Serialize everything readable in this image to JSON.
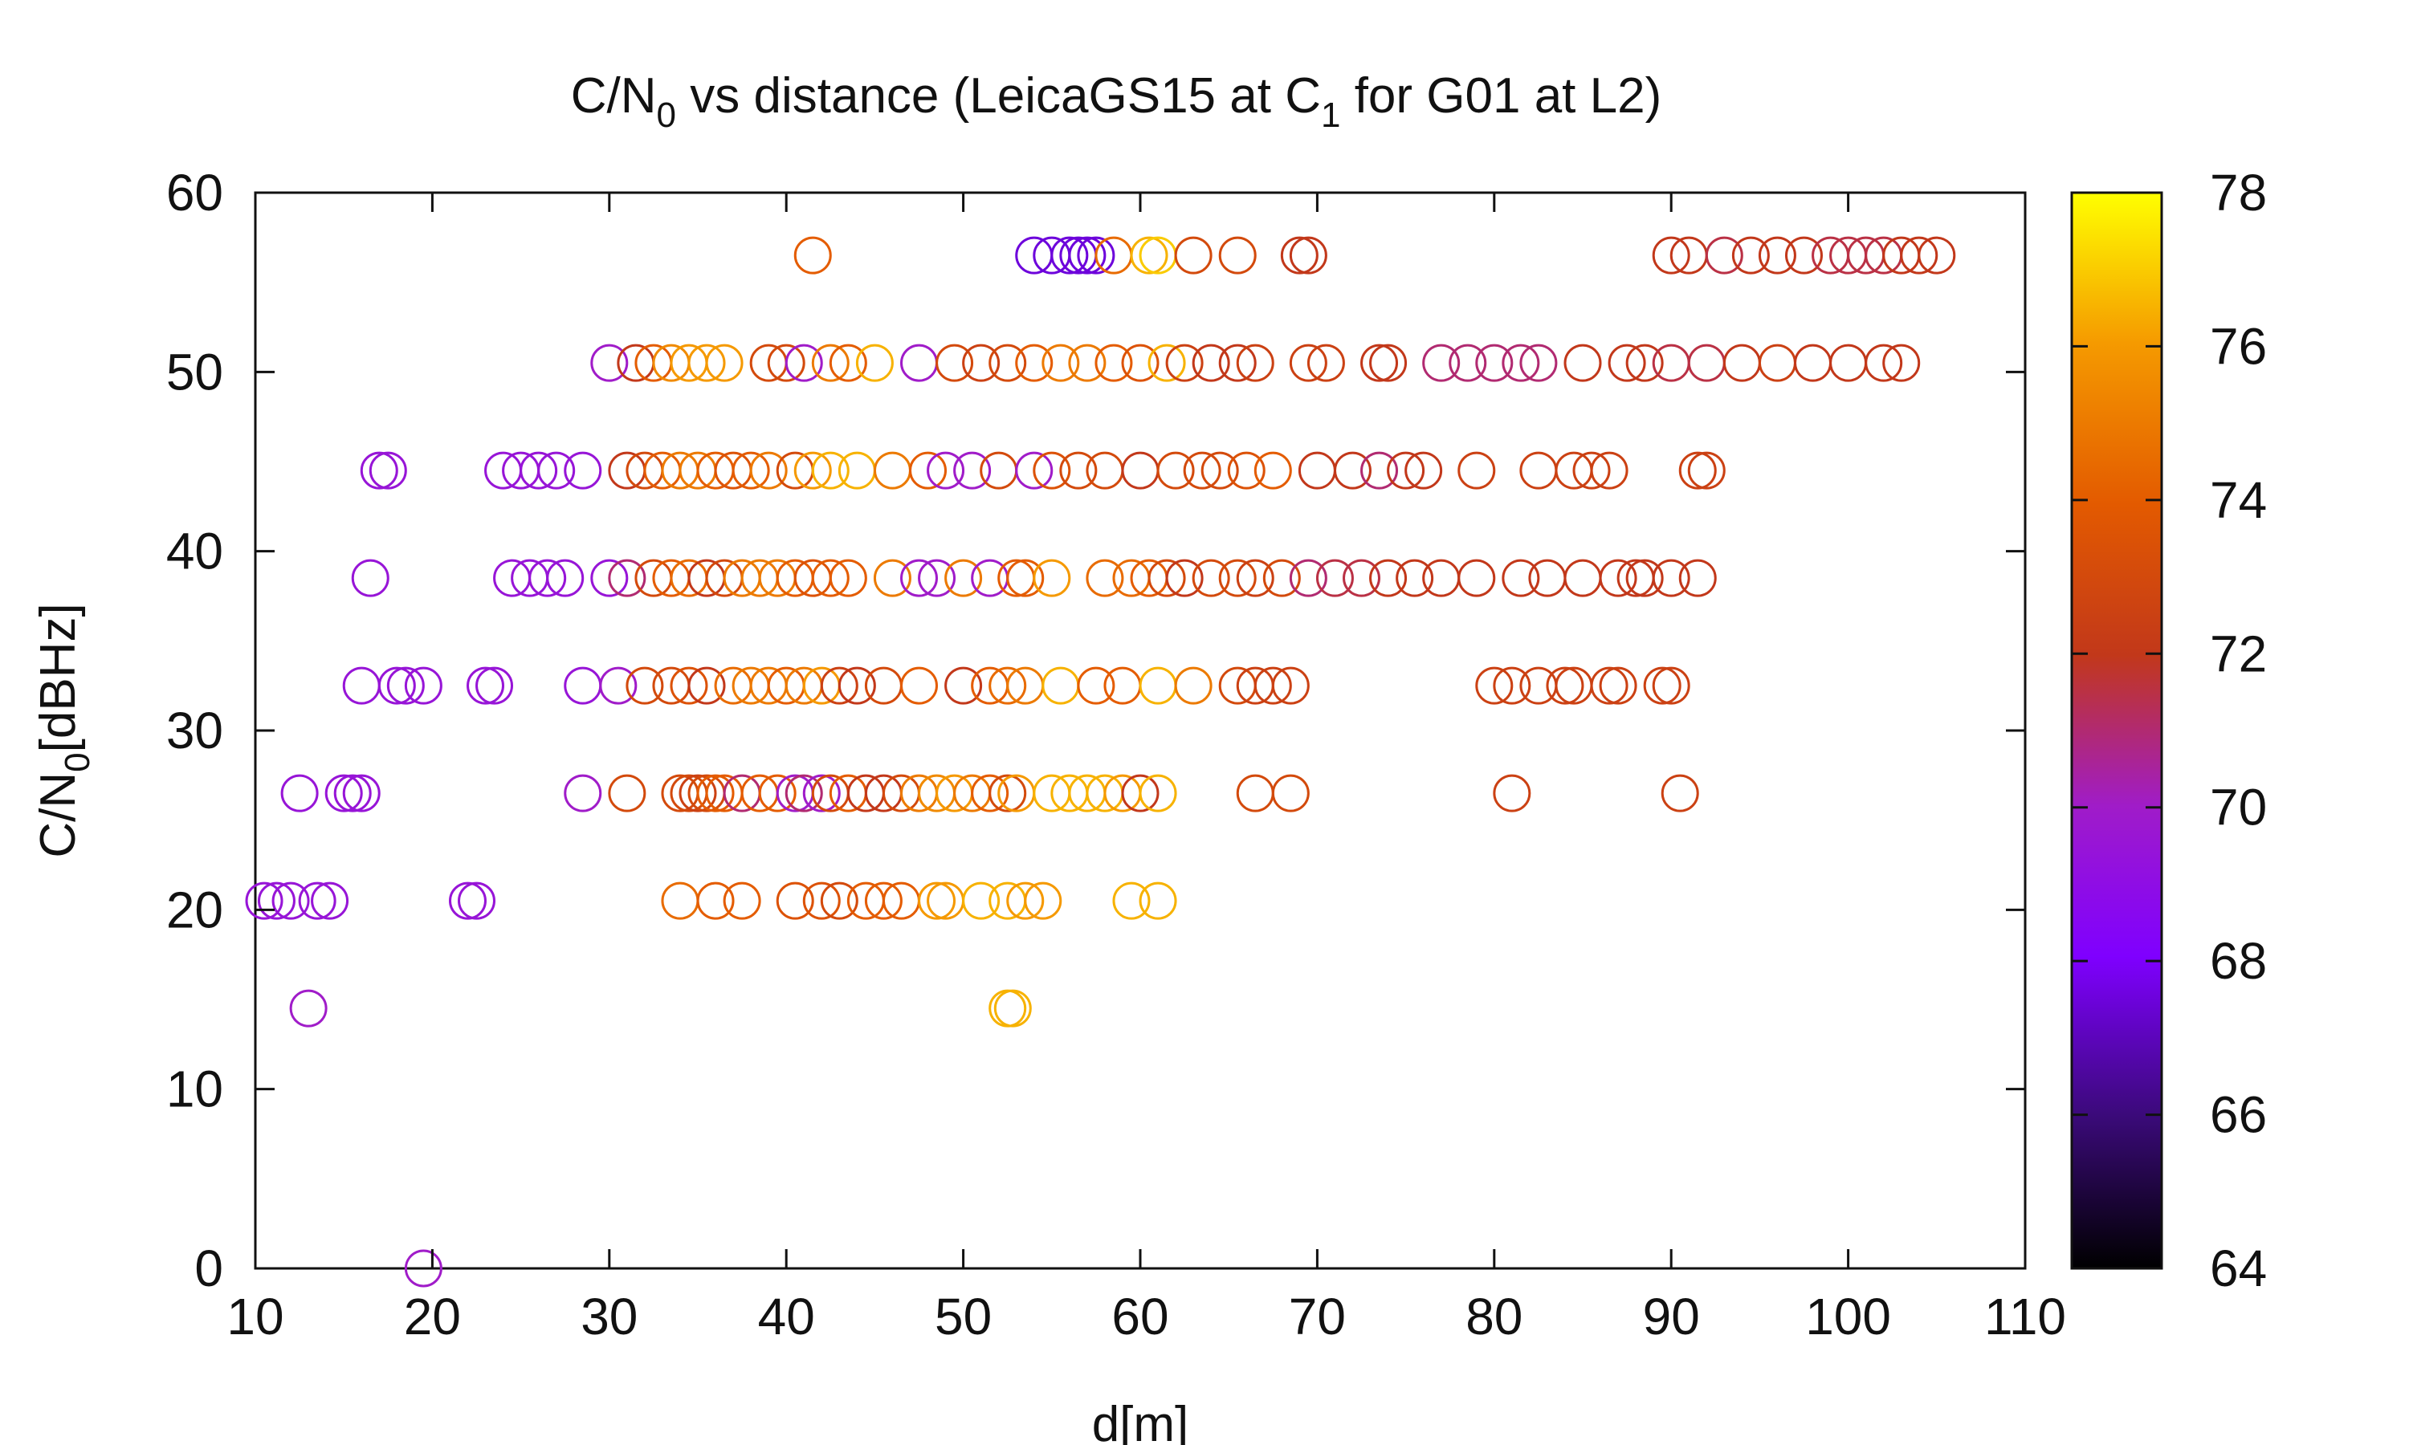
{
  "chart_data": {
    "type": "scatter",
    "title": "C/N",
    "title_sub": "0",
    "title_mid": " vs distance (LeicaGS15 at C",
    "title_sub2": "1",
    "title_end": " for G01 at L2)",
    "xlabel": "d[m]",
    "ylabel": "C/N",
    "ylabel_sub": "0",
    "ylabel_end": "[dBHz]",
    "xlim": [
      10,
      110
    ],
    "ylim": [
      0,
      60
    ],
    "xticks": [
      10,
      20,
      30,
      40,
      50,
      60,
      70,
      80,
      90,
      100,
      110
    ],
    "yticks": [
      0,
      10,
      20,
      30,
      40,
      50,
      60
    ],
    "grid": false,
    "legend": "none",
    "colorbar": {
      "range": [
        64,
        78
      ],
      "ticks": [
        64,
        66,
        68,
        70,
        72,
        74,
        76,
        78
      ],
      "colormap": "gnuplot",
      "position": "right"
    },
    "marker": "open-circle",
    "points": [
      [
        19.5,
        0,
        70
      ],
      [
        13,
        14.5,
        70
      ],
      [
        52.5,
        14.5,
        76.5
      ],
      [
        52.8,
        14.5,
        76.5
      ],
      [
        10.5,
        20.5,
        69.5
      ],
      [
        11.2,
        20.5,
        69.5
      ],
      [
        12,
        20.5,
        69.5
      ],
      [
        13.5,
        20.5,
        69.5
      ],
      [
        14.2,
        20.5,
        69.5
      ],
      [
        22,
        20.5,
        69.5
      ],
      [
        22.5,
        20.5,
        69.5
      ],
      [
        34,
        20.5,
        74.5
      ],
      [
        36,
        20.5,
        74
      ],
      [
        37.5,
        20.5,
        74
      ],
      [
        40.5,
        20.5,
        73.5
      ],
      [
        42,
        20.5,
        73.5
      ],
      [
        43,
        20.5,
        73
      ],
      [
        44.5,
        20.5,
        74
      ],
      [
        45.5,
        20.5,
        74
      ],
      [
        46.5,
        20.5,
        74
      ],
      [
        48.5,
        20.5,
        76
      ],
      [
        49,
        20.5,
        76
      ],
      [
        51,
        20.5,
        76.5
      ],
      [
        52.5,
        20.5,
        76.5
      ],
      [
        53.5,
        20.5,
        76
      ],
      [
        54.5,
        20.5,
        76
      ],
      [
        59.5,
        20.5,
        76.5
      ],
      [
        61,
        20.5,
        76.5
      ],
      [
        12.5,
        26.5,
        69.5
      ],
      [
        15,
        26.5,
        69.5
      ],
      [
        15.5,
        26.5,
        69.5
      ],
      [
        16,
        26.5,
        69.5
      ],
      [
        28.5,
        26.5,
        70
      ],
      [
        31,
        26.5,
        73
      ],
      [
        34,
        26.5,
        73
      ],
      [
        34.5,
        26.5,
        73
      ],
      [
        35,
        26.5,
        72.5
      ],
      [
        35.5,
        26.5,
        73
      ],
      [
        36,
        26.5,
        74
      ],
      [
        36.5,
        26.5,
        74
      ],
      [
        37.5,
        26.5,
        71
      ],
      [
        38.5,
        26.5,
        74
      ],
      [
        39.5,
        26.5,
        74
      ],
      [
        40.5,
        26.5,
        70
      ],
      [
        41,
        26.5,
        71
      ],
      [
        42,
        26.5,
        70
      ],
      [
        42.5,
        26.5,
        73
      ],
      [
        43.5,
        26.5,
        74
      ],
      [
        44.5,
        26.5,
        72
      ],
      [
        45.5,
        26.5,
        72
      ],
      [
        46.5,
        26.5,
        73
      ],
      [
        47.5,
        26.5,
        75
      ],
      [
        48.5,
        26.5,
        75.5
      ],
      [
        49.5,
        26.5,
        76
      ],
      [
        50.5,
        26.5,
        75
      ],
      [
        51.5,
        26.5,
        74
      ],
      [
        52.5,
        26.5,
        73
      ],
      [
        53,
        26.5,
        76
      ],
      [
        55,
        26.5,
        76.5
      ],
      [
        56,
        26.5,
        76.5
      ],
      [
        57,
        26.5,
        76.5
      ],
      [
        58,
        26.5,
        76.5
      ],
      [
        59,
        26.5,
        76
      ],
      [
        60,
        26.5,
        72
      ],
      [
        61,
        26.5,
        76.5
      ],
      [
        66.5,
        26.5,
        73
      ],
      [
        68.5,
        26.5,
        73
      ],
      [
        81,
        26.5,
        72.5
      ],
      [
        90.5,
        26.5,
        72.5
      ],
      [
        16,
        32.5,
        69.5
      ],
      [
        18,
        32.5,
        69.5
      ],
      [
        18.5,
        32.5,
        69.5
      ],
      [
        19.5,
        32.5,
        69.5
      ],
      [
        23,
        32.5,
        69.5
      ],
      [
        23.5,
        32.5,
        69.5
      ],
      [
        28.5,
        32.5,
        69.5
      ],
      [
        30.5,
        32.5,
        70
      ],
      [
        32,
        32.5,
        73
      ],
      [
        33.5,
        32.5,
        73
      ],
      [
        34.5,
        32.5,
        73.5
      ],
      [
        35.5,
        32.5,
        72
      ],
      [
        37,
        32.5,
        74.5
      ],
      [
        38,
        32.5,
        75
      ],
      [
        39,
        32.5,
        75
      ],
      [
        40,
        32.5,
        74
      ],
      [
        41,
        32.5,
        75
      ],
      [
        42,
        32.5,
        76
      ],
      [
        43,
        32.5,
        72.5
      ],
      [
        44,
        32.5,
        72
      ],
      [
        45.5,
        32.5,
        73
      ],
      [
        47.5,
        32.5,
        74
      ],
      [
        50,
        32.5,
        72
      ],
      [
        51.5,
        32.5,
        74
      ],
      [
        52.5,
        32.5,
        74.5
      ],
      [
        53.5,
        32.5,
        75
      ],
      [
        55.5,
        32.5,
        76.5
      ],
      [
        57.5,
        32.5,
        74
      ],
      [
        59,
        32.5,
        74
      ],
      [
        61,
        32.5,
        76.5
      ],
      [
        63,
        32.5,
        75
      ],
      [
        65.5,
        32.5,
        73
      ],
      [
        66.5,
        32.5,
        72.5
      ],
      [
        67.5,
        32.5,
        72.5
      ],
      [
        68.5,
        32.5,
        72.5
      ],
      [
        80,
        32.5,
        72.5
      ],
      [
        81,
        32.5,
        72.5
      ],
      [
        82.5,
        32.5,
        72.5
      ],
      [
        84,
        32.5,
        72.5
      ],
      [
        84.5,
        32.5,
        72.5
      ],
      [
        86.5,
        32.5,
        72.5
      ],
      [
        87,
        32.5,
        72.5
      ],
      [
        89.5,
        32.5,
        72.5
      ],
      [
        90,
        32.5,
        72.5
      ],
      [
        16.5,
        38.5,
        69.5
      ],
      [
        24.5,
        38.5,
        69.5
      ],
      [
        25.5,
        38.5,
        69.5
      ],
      [
        26.5,
        38.5,
        69.5
      ],
      [
        27.5,
        38.5,
        69.5
      ],
      [
        30,
        38.5,
        69.5
      ],
      [
        31,
        38.5,
        71
      ],
      [
        32.5,
        38.5,
        73
      ],
      [
        33.5,
        38.5,
        74
      ],
      [
        34.5,
        38.5,
        74.5
      ],
      [
        35.5,
        38.5,
        72
      ],
      [
        36.5,
        38.5,
        73
      ],
      [
        37.5,
        38.5,
        75
      ],
      [
        38.5,
        38.5,
        75
      ],
      [
        39.5,
        38.5,
        75
      ],
      [
        40.5,
        38.5,
        74
      ],
      [
        41.5,
        38.5,
        73.5
      ],
      [
        42.5,
        38.5,
        74
      ],
      [
        43.5,
        38.5,
        74
      ],
      [
        46,
        38.5,
        75
      ],
      [
        47.5,
        38.5,
        70
      ],
      [
        48.5,
        38.5,
        70
      ],
      [
        50,
        38.5,
        75
      ],
      [
        51.5,
        38.5,
        70
      ],
      [
        53,
        38.5,
        74
      ],
      [
        53.5,
        38.5,
        74
      ],
      [
        55,
        38.5,
        76
      ],
      [
        58,
        38.5,
        74.5
      ],
      [
        59.5,
        38.5,
        74.5
      ],
      [
        60.5,
        38.5,
        74
      ],
      [
        61.5,
        38.5,
        73
      ],
      [
        62.5,
        38.5,
        72
      ],
      [
        64,
        38.5,
        73
      ],
      [
        65.5,
        38.5,
        73
      ],
      [
        66.5,
        38.5,
        72.5
      ],
      [
        68,
        38.5,
        73
      ],
      [
        69.5,
        38.5,
        71
      ],
      [
        71,
        38.5,
        71.5
      ],
      [
        72.5,
        38.5,
        71.5
      ],
      [
        74,
        38.5,
        72
      ],
      [
        75.5,
        38.5,
        72
      ],
      [
        77,
        38.5,
        72
      ],
      [
        79,
        38.5,
        72
      ],
      [
        81.5,
        38.5,
        72
      ],
      [
        83,
        38.5,
        72
      ],
      [
        85,
        38.5,
        72
      ],
      [
        87,
        38.5,
        72
      ],
      [
        88,
        38.5,
        72
      ],
      [
        88.5,
        38.5,
        72
      ],
      [
        90,
        38.5,
        72
      ],
      [
        91.5,
        38.5,
        72
      ],
      [
        17,
        44.5,
        69.5
      ],
      [
        17.5,
        44.5,
        69.5
      ],
      [
        24,
        44.5,
        69.5
      ],
      [
        25,
        44.5,
        69.5
      ],
      [
        26,
        44.5,
        69.5
      ],
      [
        27,
        44.5,
        69.5
      ],
      [
        28.5,
        44.5,
        69.5
      ],
      [
        31,
        44.5,
        72
      ],
      [
        32,
        44.5,
        73
      ],
      [
        33,
        44.5,
        74
      ],
      [
        34,
        44.5,
        75
      ],
      [
        35,
        44.5,
        75
      ],
      [
        36,
        44.5,
        74
      ],
      [
        37,
        44.5,
        73.5
      ],
      [
        38,
        44.5,
        74
      ],
      [
        39,
        44.5,
        75
      ],
      [
        40.5,
        44.5,
        73
      ],
      [
        41.5,
        44.5,
        76
      ],
      [
        42.5,
        44.5,
        76.5
      ],
      [
        44,
        44.5,
        76.5
      ],
      [
        46,
        44.5,
        75
      ],
      [
        48,
        44.5,
        74
      ],
      [
        49,
        44.5,
        70
      ],
      [
        50.5,
        44.5,
        70
      ],
      [
        52,
        44.5,
        73
      ],
      [
        54,
        44.5,
        70
      ],
      [
        55,
        44.5,
        73.5
      ],
      [
        56.5,
        44.5,
        73
      ],
      [
        58,
        44.5,
        73
      ],
      [
        60,
        44.5,
        72
      ],
      [
        62,
        44.5,
        73
      ],
      [
        63.5,
        44.5,
        73
      ],
      [
        64.5,
        44.5,
        73
      ],
      [
        66,
        44.5,
        73.5
      ],
      [
        67.5,
        44.5,
        74
      ],
      [
        70,
        44.5,
        72
      ],
      [
        72,
        44.5,
        72
      ],
      [
        73.5,
        44.5,
        71
      ],
      [
        75,
        44.5,
        72
      ],
      [
        76,
        44.5,
        72
      ],
      [
        79,
        44.5,
        72.5
      ],
      [
        82.5,
        44.5,
        72.5
      ],
      [
        84.5,
        44.5,
        72.5
      ],
      [
        85.5,
        44.5,
        72.5
      ],
      [
        86.5,
        44.5,
        72.5
      ],
      [
        91.5,
        44.5,
        72.5
      ],
      [
        92,
        44.5,
        72.5
      ],
      [
        30,
        50.5,
        70
      ],
      [
        31.5,
        50.5,
        72
      ],
      [
        32.5,
        50.5,
        74
      ],
      [
        33.5,
        50.5,
        75.5
      ],
      [
        34.5,
        50.5,
        76
      ],
      [
        35.5,
        50.5,
        76
      ],
      [
        36.5,
        50.5,
        76
      ],
      [
        39,
        50.5,
        73
      ],
      [
        40,
        50.5,
        73
      ],
      [
        41,
        50.5,
        70
      ],
      [
        42.5,
        50.5,
        75
      ],
      [
        43.5,
        50.5,
        74
      ],
      [
        45,
        50.5,
        76.5
      ],
      [
        47.5,
        50.5,
        70
      ],
      [
        49.5,
        50.5,
        73
      ],
      [
        51,
        50.5,
        72.5
      ],
      [
        52.5,
        50.5,
        73
      ],
      [
        54,
        50.5,
        74
      ],
      [
        55.5,
        50.5,
        75
      ],
      [
        57,
        50.5,
        75
      ],
      [
        58.5,
        50.5,
        74
      ],
      [
        60,
        50.5,
        73.5
      ],
      [
        61.5,
        50.5,
        76.5
      ],
      [
        62.5,
        50.5,
        72.5
      ],
      [
        64,
        50.5,
        72
      ],
      [
        65.5,
        50.5,
        72
      ],
      [
        66.5,
        50.5,
        72.5
      ],
      [
        69.5,
        50.5,
        72.5
      ],
      [
        70.5,
        50.5,
        72.5
      ],
      [
        73.5,
        50.5,
        72
      ],
      [
        74,
        50.5,
        72
      ],
      [
        77,
        50.5,
        71
      ],
      [
        78.5,
        50.5,
        71
      ],
      [
        80,
        50.5,
        71
      ],
      [
        81.5,
        50.5,
        71
      ],
      [
        82.5,
        50.5,
        71
      ],
      [
        85,
        50.5,
        72
      ],
      [
        87.5,
        50.5,
        72
      ],
      [
        88.5,
        50.5,
        72
      ],
      [
        90,
        50.5,
        71.5
      ],
      [
        92,
        50.5,
        71.5
      ],
      [
        94,
        50.5,
        72
      ],
      [
        96,
        50.5,
        72.5
      ],
      [
        98,
        50.5,
        72
      ],
      [
        100,
        50.5,
        72
      ],
      [
        102,
        50.5,
        72
      ],
      [
        103,
        50.5,
        72
      ],
      [
        41.5,
        56.5,
        74
      ],
      [
        54,
        56.5,
        67.5
      ],
      [
        55,
        56.5,
        67.5
      ],
      [
        56,
        56.5,
        67.5
      ],
      [
        56.5,
        56.5,
        67.5
      ],
      [
        57,
        56.5,
        67.5
      ],
      [
        57.5,
        56.5,
        67.5
      ],
      [
        58.5,
        56.5,
        74.5
      ],
      [
        60.5,
        56.5,
        76.5
      ],
      [
        61,
        56.5,
        77
      ],
      [
        63,
        56.5,
        73
      ],
      [
        65.5,
        56.5,
        73
      ],
      [
        69,
        56.5,
        72
      ],
      [
        69.5,
        56.5,
        72
      ],
      [
        90,
        56.5,
        72
      ],
      [
        91,
        56.5,
        72
      ],
      [
        93,
        56.5,
        71.5
      ],
      [
        94.5,
        56.5,
        72
      ],
      [
        96,
        56.5,
        72
      ],
      [
        97.5,
        56.5,
        72
      ],
      [
        99,
        56.5,
        71.5
      ],
      [
        100,
        56.5,
        71.5
      ],
      [
        101,
        56.5,
        71.5
      ],
      [
        102,
        56.5,
        71.5
      ],
      [
        103,
        56.5,
        72
      ],
      [
        104,
        56.5,
        72
      ],
      [
        105,
        56.5,
        72
      ]
    ]
  }
}
